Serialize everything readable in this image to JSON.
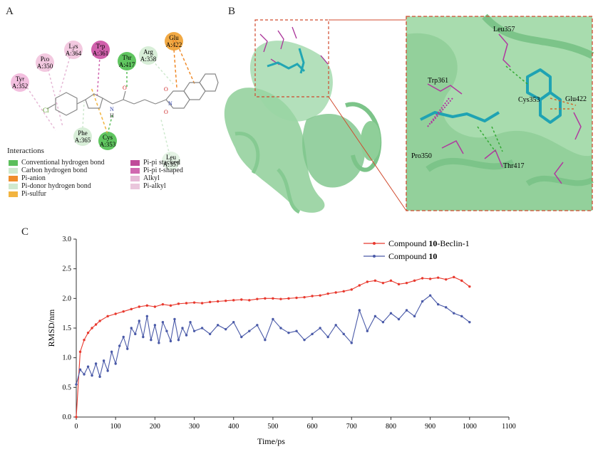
{
  "panels": {
    "a": "A",
    "b": "B",
    "c": "C"
  },
  "panelA": {
    "residues": [
      {
        "name": "Tyr",
        "pos": "A:352",
        "color": "#f2b8dc"
      },
      {
        "name": "Pro",
        "pos": "A:350",
        "color": "#f2c3dd"
      },
      {
        "name": "Lys",
        "pos": "A:364",
        "color": "#f2c3dd"
      },
      {
        "name": "Trp",
        "pos": "A:361",
        "color": "#cc4fa3"
      },
      {
        "name": "Thr",
        "pos": "A:417",
        "color": "#4fbf4f"
      },
      {
        "name": "Arg",
        "pos": "A:358",
        "color": "#d4ecd4"
      },
      {
        "name": "Glu",
        "pos": "A:422",
        "color": "#f0a030"
      },
      {
        "name": "Phe",
        "pos": "A:365",
        "color": "#d4ecd4"
      },
      {
        "name": "Cys",
        "pos": "A:353",
        "color": "#4fbf4f"
      },
      {
        "name": "Leu",
        "pos": "A:357",
        "color": "#e2f2e2"
      }
    ],
    "atoms": {
      "cl": "Cl",
      "n": "N",
      "h": "H",
      "o1": "O",
      "o2": "O",
      "o3": "O",
      "n2": "N"
    },
    "legend_title": "Interactions",
    "legend_left": [
      {
        "label": "Conventional hydrogen bond",
        "color": "#5cbf5c"
      },
      {
        "label": "Carbon hydrogen bond",
        "color": "#cfe9cf"
      },
      {
        "label": "Pi-anion",
        "color": "#f08c2c"
      },
      {
        "label": "Pi-donor hydrogen bond",
        "color": "#cfe9cf"
      },
      {
        "label": "Pi-sulfur",
        "color": "#f2b440"
      }
    ],
    "legend_right": [
      {
        "label": "Pi-pi stacked",
        "color": "#c04a9a"
      },
      {
        "label": "Pi-pi t-shaped",
        "color": "#d068b0"
      },
      {
        "label": "Alkyl",
        "color": "#e6b9d6"
      },
      {
        "label": "Pi-alkyl",
        "color": "#eac6dc"
      }
    ]
  },
  "panelB": {
    "labels": {
      "leu": "Leu357",
      "trp": "Trp361",
      "cys": "Cys353",
      "glu": "Glu422",
      "pro": "Pro350",
      "thr": "Thr417"
    }
  },
  "chart_data": {
    "type": "line",
    "xlabel": "Time/ps",
    "ylabel": "RMSD/nm",
    "xlim": [
      0,
      1100
    ],
    "ylim": [
      0,
      3.0
    ],
    "xticks": [
      0,
      100,
      200,
      300,
      400,
      500,
      600,
      700,
      800,
      900,
      1000,
      1100
    ],
    "yticks": [
      0.0,
      0.5,
      1.0,
      1.5,
      2.0,
      2.5,
      3.0
    ],
    "legend_position": "top-right",
    "series": [
      {
        "name": "Compound 10-Beclin-1",
        "name_prefix": "Compound ",
        "name_bold": "10",
        "name_suffix": "-Beclin-1",
        "color": "#e8392e",
        "x": [
          0,
          10,
          20,
          30,
          40,
          50,
          60,
          80,
          100,
          120,
          140,
          160,
          180,
          200,
          220,
          240,
          260,
          280,
          300,
          320,
          340,
          360,
          380,
          400,
          420,
          440,
          460,
          480,
          500,
          520,
          540,
          560,
          580,
          600,
          620,
          640,
          660,
          680,
          700,
          720,
          740,
          760,
          780,
          800,
          820,
          840,
          860,
          880,
          900,
          920,
          940,
          960,
          980,
          1000
        ],
        "y": [
          0.0,
          1.1,
          1.3,
          1.42,
          1.5,
          1.56,
          1.62,
          1.7,
          1.74,
          1.78,
          1.82,
          1.86,
          1.88,
          1.86,
          1.9,
          1.88,
          1.91,
          1.92,
          1.93,
          1.92,
          1.94,
          1.95,
          1.96,
          1.97,
          1.98,
          1.97,
          1.99,
          2.0,
          2.0,
          1.99,
          2.0,
          2.01,
          2.02,
          2.04,
          2.05,
          2.08,
          2.1,
          2.12,
          2.15,
          2.22,
          2.28,
          2.3,
          2.26,
          2.3,
          2.24,
          2.26,
          2.3,
          2.34,
          2.33,
          2.35,
          2.32,
          2.36,
          2.3,
          2.2
        ]
      },
      {
        "name": "Compound 10",
        "name_prefix": "Compound ",
        "name_bold": "10",
        "name_suffix": "",
        "color": "#4a5aa8",
        "x": [
          0,
          10,
          20,
          30,
          40,
          50,
          60,
          70,
          80,
          90,
          100,
          110,
          120,
          130,
          140,
          150,
          160,
          170,
          180,
          190,
          200,
          210,
          220,
          230,
          240,
          250,
          260,
          270,
          280,
          290,
          300,
          320,
          340,
          360,
          380,
          400,
          420,
          440,
          460,
          480,
          500,
          520,
          540,
          560,
          580,
          600,
          620,
          640,
          660,
          680,
          700,
          720,
          740,
          760,
          780,
          800,
          820,
          840,
          860,
          880,
          900,
          920,
          940,
          960,
          980,
          1000
        ],
        "y": [
          0.55,
          0.8,
          0.72,
          0.85,
          0.7,
          0.9,
          0.68,
          0.95,
          0.78,
          1.1,
          0.9,
          1.2,
          1.35,
          1.15,
          1.5,
          1.4,
          1.62,
          1.35,
          1.7,
          1.3,
          1.55,
          1.25,
          1.6,
          1.45,
          1.28,
          1.65,
          1.3,
          1.5,
          1.38,
          1.6,
          1.45,
          1.5,
          1.4,
          1.55,
          1.48,
          1.6,
          1.35,
          1.45,
          1.55,
          1.3,
          1.65,
          1.5,
          1.42,
          1.45,
          1.3,
          1.4,
          1.5,
          1.35,
          1.55,
          1.4,
          1.25,
          1.8,
          1.45,
          1.7,
          1.6,
          1.75,
          1.65,
          1.8,
          1.7,
          1.95,
          2.05,
          1.9,
          1.85,
          1.75,
          1.7,
          1.6
        ]
      }
    ]
  }
}
